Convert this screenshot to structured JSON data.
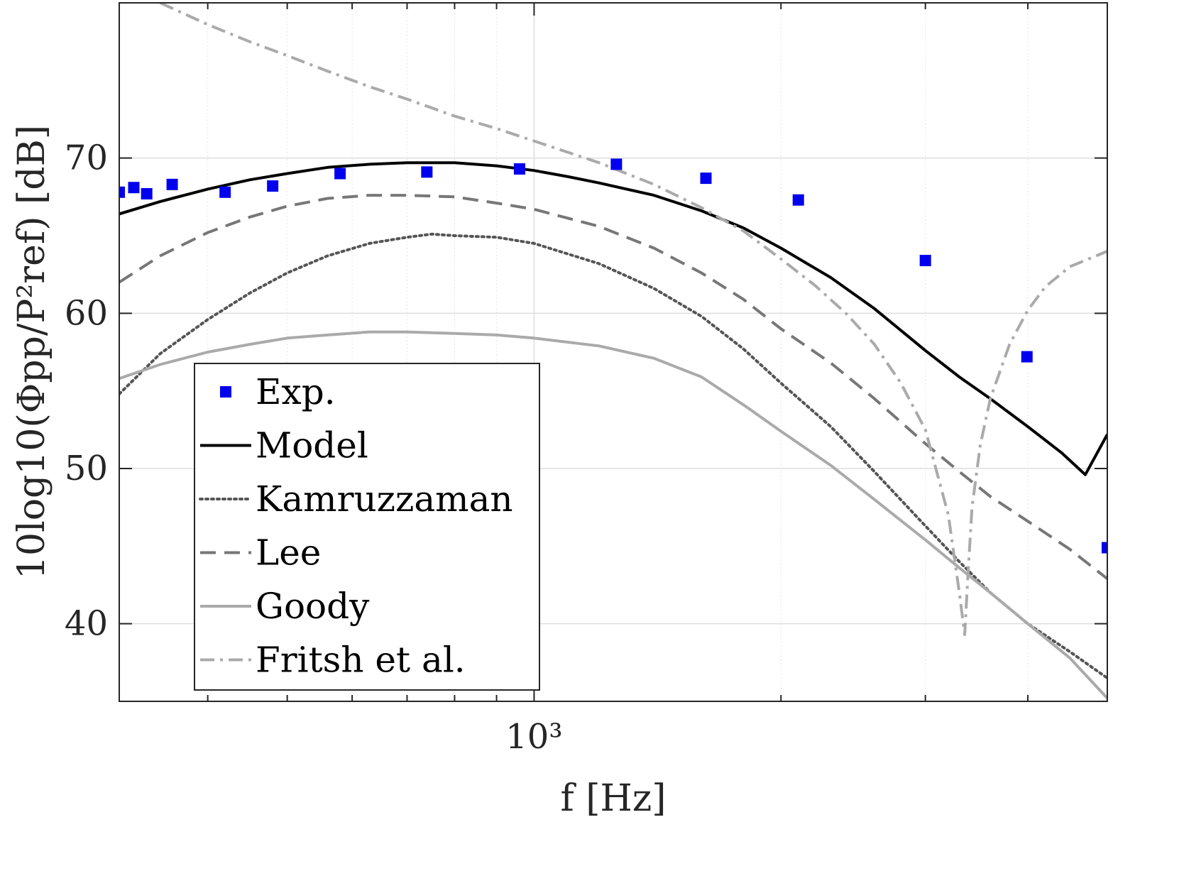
{
  "chart_data": {
    "type": "line",
    "xlabel": "f [Hz]",
    "ylabel": "10log10(Φpp/P²ref) [dB]",
    "xscale": "log",
    "xlim": [
      312,
      5000
    ],
    "ylim": [
      35,
      80
    ],
    "xticks": [
      {
        "value": 1000,
        "label": "10³"
      }
    ],
    "yticks": [
      {
        "value": 40,
        "label": "40"
      },
      {
        "value": 50,
        "label": "50"
      },
      {
        "value": 60,
        "label": "60"
      },
      {
        "value": 70,
        "label": "70"
      }
    ],
    "grid": true,
    "legend_position": "bottom-left",
    "series": [
      {
        "name": "Exp.",
        "kind": "markers",
        "color": "#0000ee",
        "x": [
          312,
          325,
          337,
          362,
          420,
          480,
          580,
          740,
          960,
          1260,
          1620,
          2100,
          3000,
          3990,
          5000
        ],
        "y": [
          67.8,
          68.1,
          67.7,
          68.3,
          67.8,
          68.2,
          69.0,
          69.1,
          69.3,
          69.6,
          68.7,
          67.3,
          63.4,
          57.2,
          44.9
        ]
      },
      {
        "name": "Model",
        "kind": "line",
        "color": "#000000",
        "dash": "solid",
        "x": [
          312,
          350,
          400,
          450,
          500,
          560,
          630,
          700,
          800,
          900,
          1000,
          1100,
          1200,
          1400,
          1600,
          1800,
          2000,
          2300,
          2600,
          3000,
          3300,
          3600,
          4000,
          4400,
          4700,
          5000
        ],
        "y": [
          66.4,
          67.2,
          68.0,
          68.6,
          69.0,
          69.4,
          69.6,
          69.7,
          69.7,
          69.5,
          69.2,
          68.8,
          68.4,
          67.6,
          66.6,
          65.5,
          64.2,
          62.3,
          60.3,
          57.6,
          55.9,
          54.5,
          52.7,
          51.0,
          49.6,
          52.2
        ]
      },
      {
        "name": "Kamruzzaman",
        "kind": "line",
        "color": "#555555",
        "dash": "dotted",
        "x": [
          312,
          350,
          400,
          450,
          500,
          560,
          630,
          700,
          750,
          800,
          900,
          1000,
          1200,
          1400,
          1600,
          1800,
          2000,
          2300,
          2600,
          3000,
          3300,
          3600,
          4000,
          4500,
          5000
        ],
        "y": [
          54.8,
          57.4,
          59.6,
          61.3,
          62.6,
          63.7,
          64.5,
          64.9,
          65.1,
          65.0,
          64.9,
          64.5,
          63.2,
          61.6,
          59.8,
          57.7,
          55.5,
          52.7,
          49.8,
          46.3,
          44.0,
          42.0,
          40.0,
          38.2,
          36.5
        ]
      },
      {
        "name": "Lee",
        "kind": "line",
        "color": "#777777",
        "dash": "dashed",
        "x": [
          312,
          350,
          400,
          450,
          500,
          560,
          630,
          700,
          800,
          900,
          1000,
          1200,
          1400,
          1600,
          1800,
          2000,
          2300,
          2600,
          3000,
          3300,
          3600,
          4000,
          4500,
          5000
        ],
        "y": [
          62.0,
          63.7,
          65.2,
          66.2,
          66.9,
          67.4,
          67.6,
          67.6,
          67.5,
          67.1,
          66.7,
          65.6,
          64.2,
          62.6,
          60.9,
          59.0,
          56.8,
          54.5,
          51.6,
          49.8,
          48.2,
          46.6,
          44.8,
          42.9
        ]
      },
      {
        "name": "Goody",
        "kind": "line",
        "color": "#aaaaaa",
        "dash": "solid",
        "x": [
          312,
          350,
          400,
          450,
          500,
          560,
          630,
          700,
          800,
          900,
          1000,
          1200,
          1400,
          1600,
          1800,
          2000,
          2300,
          2600,
          3000,
          3300,
          3600,
          4000,
          4500,
          5000
        ],
        "y": [
          55.8,
          56.7,
          57.5,
          58.0,
          58.4,
          58.6,
          58.8,
          58.8,
          58.7,
          58.6,
          58.4,
          57.9,
          57.1,
          55.9,
          54.1,
          52.4,
          50.2,
          48.0,
          45.4,
          43.6,
          42.0,
          40.0,
          37.8,
          35.2
        ]
      },
      {
        "name": "Fritsh et al.",
        "kind": "line",
        "color": "#aaaaaa",
        "dash": "dashdot",
        "x": [
          350,
          400,
          450,
          500,
          560,
          630,
          700,
          800,
          900,
          1000,
          1200,
          1400,
          1600,
          1800,
          2000,
          2200,
          2400,
          2600,
          2800,
          3000,
          3200,
          3300,
          3350,
          3380,
          3420,
          3500,
          3600,
          3800,
          4000,
          4200,
          4500,
          5000
        ],
        "y": [
          80.0,
          78.6,
          77.5,
          76.6,
          75.6,
          74.6,
          73.8,
          72.7,
          71.9,
          71.1,
          69.7,
          68.3,
          66.8,
          65.3,
          63.5,
          61.8,
          60.0,
          58.0,
          55.5,
          52.5,
          47.0,
          42.0,
          39.3,
          43.0,
          47.5,
          51.5,
          54.5,
          58.0,
          60.2,
          61.7,
          63.0,
          64.0
        ]
      }
    ]
  }
}
